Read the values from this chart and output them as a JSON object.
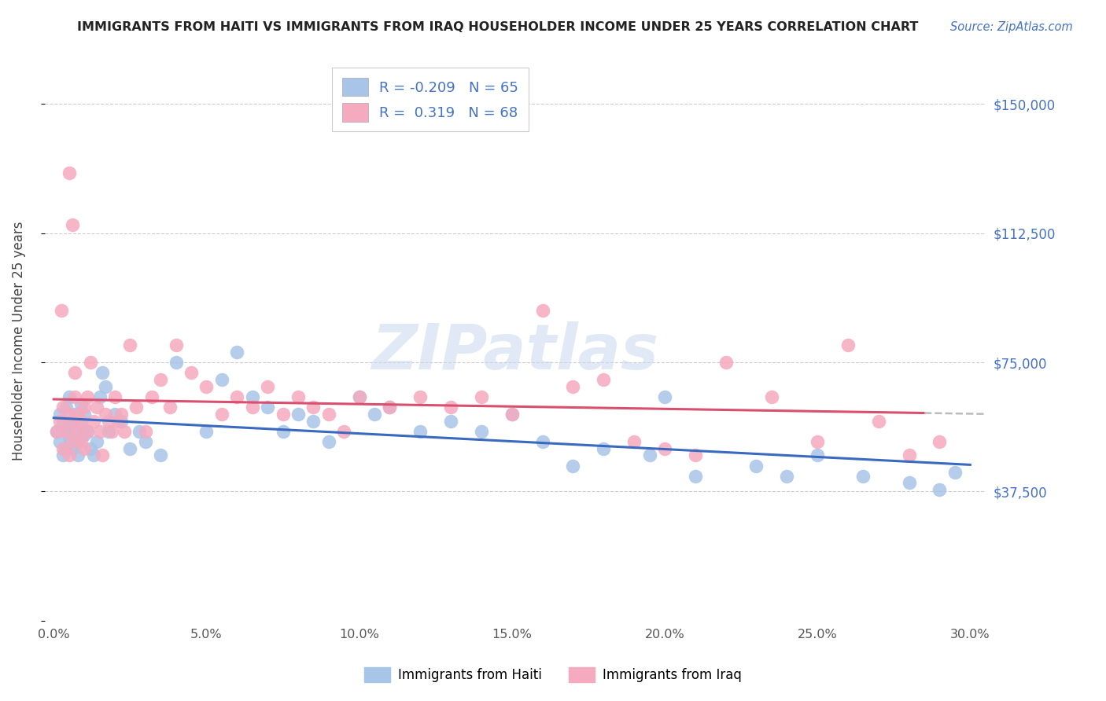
{
  "title": "IMMIGRANTS FROM HAITI VS IMMIGRANTS FROM IRAQ HOUSEHOLDER INCOME UNDER 25 YEARS CORRELATION CHART",
  "source": "Source: ZipAtlas.com",
  "ylabel": "Householder Income Under 25 years",
  "ylim": [
    0,
    162500
  ],
  "xlim": [
    -0.3,
    30.5
  ],
  "yticks": [
    0,
    37500,
    75000,
    112500,
    150000
  ],
  "ytick_labels": [
    "",
    "$37,500",
    "$75,000",
    "$112,500",
    "$150,000"
  ],
  "xtick_vals": [
    0,
    5,
    10,
    15,
    20,
    25,
    30
  ],
  "legend_haiti_R": "-0.209",
  "legend_haiti_N": "65",
  "legend_iraq_R": "0.319",
  "legend_iraq_N": "68",
  "haiti_color": "#a8c4e8",
  "iraq_color": "#f5aabf",
  "haiti_line_color": "#3a6abf",
  "iraq_line_color": "#d94f6e",
  "watermark": "ZIPatlas",
  "haiti_points_x": [
    0.1,
    0.2,
    0.2,
    0.3,
    0.3,
    0.4,
    0.4,
    0.4,
    0.5,
    0.5,
    0.5,
    0.6,
    0.6,
    0.7,
    0.7,
    0.8,
    0.8,
    0.9,
    0.9,
    1.0,
    1.0,
    1.1,
    1.2,
    1.3,
    1.4,
    1.5,
    1.6,
    1.7,
    1.8,
    2.0,
    2.2,
    2.5,
    2.8,
    3.0,
    3.5,
    4.0,
    5.0,
    5.5,
    6.0,
    6.5,
    7.0,
    7.5,
    8.0,
    8.5,
    9.0,
    10.0,
    10.5,
    11.0,
    12.0,
    13.0,
    14.0,
    15.0,
    16.0,
    17.0,
    18.0,
    19.5,
    20.0,
    21.0,
    23.0,
    24.0,
    25.0,
    26.5,
    28.0,
    29.0,
    29.5
  ],
  "haiti_points_y": [
    55000,
    52000,
    60000,
    48000,
    58000,
    50000,
    55000,
    62000,
    53000,
    57000,
    65000,
    50000,
    58000,
    55000,
    60000,
    52000,
    48000,
    57000,
    63000,
    54000,
    60000,
    55000,
    50000,
    48000,
    52000,
    65000,
    72000,
    68000,
    55000,
    60000,
    58000,
    50000,
    55000,
    52000,
    48000,
    75000,
    55000,
    70000,
    78000,
    65000,
    62000,
    55000,
    60000,
    58000,
    52000,
    65000,
    60000,
    62000,
    55000,
    58000,
    55000,
    60000,
    52000,
    45000,
    50000,
    48000,
    65000,
    42000,
    45000,
    42000,
    48000,
    42000,
    40000,
    38000,
    43000
  ],
  "iraq_points_x": [
    0.1,
    0.2,
    0.3,
    0.3,
    0.4,
    0.5,
    0.5,
    0.6,
    0.6,
    0.7,
    0.7,
    0.8,
    0.8,
    0.9,
    0.9,
    1.0,
    1.0,
    1.1,
    1.1,
    1.2,
    1.3,
    1.4,
    1.5,
    1.6,
    1.7,
    1.8,
    1.9,
    2.0,
    2.1,
    2.2,
    2.3,
    2.5,
    2.7,
    3.0,
    3.2,
    3.5,
    3.8,
    4.0,
    4.5,
    5.0,
    5.5,
    6.0,
    6.5,
    7.0,
    7.5,
    8.0,
    8.5,
    9.0,
    9.5,
    10.0,
    11.0,
    12.0,
    13.0,
    14.0,
    15.0,
    16.0,
    17.0,
    18.0,
    19.0,
    20.0,
    21.0,
    22.0,
    23.5,
    25.0,
    26.0,
    27.0,
    28.0,
    29.0
  ],
  "iraq_points_y": [
    55000,
    58000,
    50000,
    62000,
    55000,
    48000,
    60000,
    58000,
    52000,
    65000,
    72000,
    55000,
    60000,
    52000,
    58000,
    50000,
    62000,
    55000,
    65000,
    75000,
    58000,
    62000,
    55000,
    48000,
    60000,
    58000,
    55000,
    65000,
    58000,
    60000,
    55000,
    80000,
    62000,
    55000,
    65000,
    70000,
    62000,
    80000,
    72000,
    68000,
    60000,
    65000,
    62000,
    68000,
    60000,
    65000,
    62000,
    60000,
    55000,
    65000,
    62000,
    65000,
    62000,
    65000,
    60000,
    90000,
    68000,
    70000,
    52000,
    50000,
    48000,
    75000,
    65000,
    52000,
    80000,
    58000,
    48000,
    52000
  ],
  "iraq_high_points_x": [
    0.5,
    0.6,
    0.25
  ],
  "iraq_high_points_y": [
    130000,
    115000,
    90000
  ]
}
